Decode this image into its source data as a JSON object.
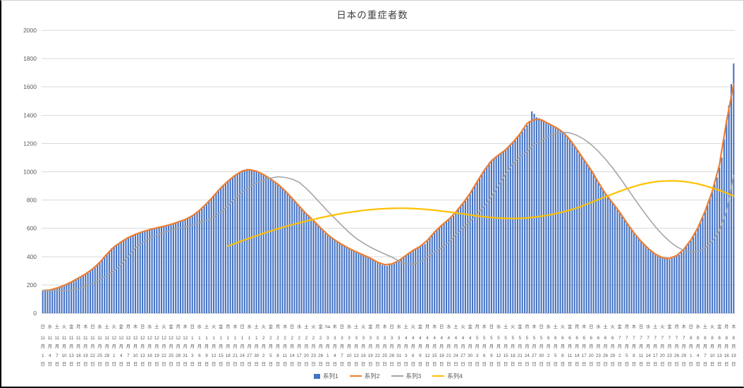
{
  "chart_data": {
    "type": "combo",
    "title": "日本の重症者数",
    "grid": true,
    "legend_position": "bottom",
    "y_axis": {
      "min": 0,
      "max": 2000,
      "step": 200,
      "tick_labels": [
        "0",
        "200",
        "400",
        "600",
        "800",
        "1000",
        "1200",
        "1400",
        "1600",
        "1800",
        "2000"
      ]
    },
    "x_axis": {
      "tick_every_days": 3,
      "month_suffix": "月",
      "day_suffix": "日",
      "tick_labels": [
        [
          "日",
          "11",
          "1"
        ],
        [
          "水",
          "11",
          "4"
        ],
        [
          "土",
          "11",
          "7"
        ],
        [
          "火",
          "11",
          "10"
        ],
        [
          "金",
          "11",
          "13"
        ],
        [
          "月",
          "11",
          "16"
        ],
        [
          "木",
          "11",
          "19"
        ],
        [
          "日",
          "11",
          "22"
        ],
        [
          "水",
          "11",
          "25"
        ],
        [
          "土",
          "11",
          "28"
        ],
        [
          "火",
          "12",
          "1"
        ],
        [
          "金",
          "12",
          "4"
        ],
        [
          "月",
          "12",
          "7"
        ],
        [
          "木",
          "12",
          "10"
        ],
        [
          "日",
          "12",
          "13"
        ],
        [
          "水",
          "12",
          "16"
        ],
        [
          "土",
          "12",
          "19"
        ],
        [
          "火",
          "12",
          "22"
        ],
        [
          "金",
          "12",
          "25"
        ],
        [
          "月",
          "12",
          "28"
        ],
        [
          "木",
          "12",
          "31"
        ],
        [
          "日",
          "1",
          "3"
        ],
        [
          "水",
          "1",
          "6"
        ],
        [
          "土",
          "1",
          "9"
        ],
        [
          "火",
          "1",
          "12"
        ],
        [
          "金",
          "1",
          "15"
        ],
        [
          "月",
          "1",
          "18"
        ],
        [
          "木",
          "1",
          "21"
        ],
        [
          "日",
          "1",
          "24"
        ],
        [
          "水",
          "1",
          "27"
        ],
        [
          "土",
          "1",
          "30"
        ],
        [
          "火",
          "2",
          "2"
        ],
        [
          "金",
          "2",
          "5"
        ],
        [
          "月",
          "2",
          "8"
        ],
        [
          "木",
          "2",
          "11"
        ],
        [
          "日",
          "2",
          "14"
        ],
        [
          "水",
          "2",
          "17"
        ],
        [
          "土",
          "2",
          "20"
        ],
        [
          "火",
          "2",
          "23"
        ],
        [
          "金",
          "2",
          "26"
        ],
        [
          "ha",
          "3",
          "1"
        ],
        [
          "木",
          "3",
          "4"
        ],
        [
          "日",
          "3",
          "7"
        ],
        [
          "水",
          "3",
          "10"
        ],
        [
          "土",
          "3",
          "13"
        ],
        [
          "火",
          "3",
          "16"
        ],
        [
          "金",
          "3",
          "19"
        ],
        [
          "月",
          "3",
          "22"
        ],
        [
          "木",
          "3",
          "25"
        ],
        [
          "日",
          "3",
          "28"
        ],
        [
          "水",
          "3",
          "31"
        ],
        [
          "土",
          "4",
          "3"
        ],
        [
          "火",
          "4",
          "6"
        ],
        [
          "金",
          "4",
          "9"
        ],
        [
          "月",
          "4",
          "12"
        ],
        [
          "木",
          "4",
          "15"
        ],
        [
          "日",
          "4",
          "18"
        ],
        [
          "水",
          "4",
          "21"
        ],
        [
          "土",
          "4",
          "24"
        ],
        [
          "火",
          "4",
          "27"
        ],
        [
          "金",
          "4",
          "30"
        ],
        [
          "月",
          "5",
          "3"
        ],
        [
          "木",
          "5",
          "6"
        ],
        [
          "日",
          "5",
          "9"
        ],
        [
          "水",
          "5",
          "12"
        ],
        [
          "土",
          "5",
          "15"
        ],
        [
          "火",
          "5",
          "18"
        ],
        [
          "金",
          "5",
          "21"
        ],
        [
          "月",
          "5",
          "24"
        ],
        [
          "木",
          "5",
          "27"
        ],
        [
          "日",
          "5",
          "30"
        ],
        [
          "水",
          "6",
          "2"
        ],
        [
          "土",
          "6",
          "5"
        ],
        [
          "火",
          "6",
          "8"
        ],
        [
          "金",
          "6",
          "11"
        ],
        [
          "月",
          "6",
          "14"
        ],
        [
          "木",
          "6",
          "17"
        ],
        [
          "日",
          "6",
          "20"
        ],
        [
          "水",
          "6",
          "23"
        ],
        [
          "土",
          "6",
          "26"
        ],
        [
          "火",
          "6",
          "29"
        ],
        [
          "金",
          "7",
          "2"
        ],
        [
          "月",
          "7",
          "5"
        ],
        [
          "木",
          "7",
          "8"
        ],
        [
          "日",
          "7",
          "11"
        ],
        [
          "水",
          "7",
          "14"
        ],
        [
          "土",
          "7",
          "17"
        ],
        [
          "火",
          "7",
          "20"
        ],
        [
          "金",
          "7",
          "23"
        ],
        [
          "月",
          "7",
          "26"
        ],
        [
          "木",
          "7",
          "29"
        ],
        [
          "日",
          "8",
          "1"
        ],
        [
          "水",
          "8",
          "4"
        ],
        [
          "土",
          "8",
          "7"
        ],
        [
          "火",
          "8",
          "10"
        ],
        [
          "金",
          "8",
          "13"
        ],
        [
          "月",
          "8",
          "16"
        ],
        [
          "木",
          "8",
          "19"
        ]
      ]
    },
    "series": [
      {
        "name": "系列1",
        "type": "bar",
        "color": "#4472C4",
        "values": [
          160,
          158,
          161,
          163,
          169,
          171,
          179,
          183,
          190,
          197,
          203,
          210,
          223,
          229,
          240,
          251,
          257,
          270,
          278,
          287,
          300,
          310,
          324,
          345,
          356,
          375,
          398,
          415,
          441,
          460,
          469,
          485,
          492,
          505,
          517,
          523,
          537,
          545,
          553,
          556,
          566,
          570,
          577,
          579,
          588,
          592,
          594,
          602,
          603,
          608,
          613,
          613,
          620,
          622,
          626,
          636,
          638,
          645,
          653,
          655,
          662,
          668,
          679,
          685,
          701,
          710,
          728,
          740,
          756,
          778,
          790,
          810,
          832,
          848,
          872,
          890,
          903,
          922,
          933,
          950,
          964,
          973,
          990,
          1000,
          1005,
          1015,
          1020,
          1017,
          1013,
          1011,
          1002,
          1000,
          992,
          978,
          972,
          960,
          951,
          936,
          928,
          915,
          901,
          881,
          868,
          850,
          833,
          811,
          796,
          775,
          758,
          736,
          721,
          700,
          687,
          668,
          657,
          640,
          623,
          601,
          586,
          565,
          555,
          538,
          530,
          515,
          507,
          493,
          487,
          475,
          468,
          456,
          451,
          440,
          435,
          424,
          421,
          412,
          407,
          395,
          392,
          382,
          371,
          355,
          351,
          341,
          338,
          336,
          347,
          345,
          351,
          360,
          370,
          385,
          395,
          406,
          424,
          435,
          447,
          453,
          465,
          471,
          484,
          490,
          510,
          535,
          555,
          575,
          590,
          610,
          621,
          639,
          650,
          665,
          675,
          690,
          711,
          739,
          760,
          780,
          795,
          815,
          843,
          877,
          905,
          934,
          956,
          985,
          1010,
          1040,
          1065,
          1082,
          1093,
          1110,
          1122,
          1128,
          1140,
          1153,
          1172,
          1185,
          1209,
          1226,
          1250,
          1270,
          1285,
          1306,
          1330,
          1360,
          1427,
          1410,
          1385,
          1379,
          1366,
          1360,
          1352,
          1338,
          1330,
          1325,
          1313,
          1308,
          1297,
          1281,
          1270,
          1252,
          1228,
          1210,
          1185,
          1155,
          1130,
          1109,
          1081,
          1060,
          1039,
          1011,
          990,
          959,
          921,
          890,
          869,
          841,
          820,
          803,
          780,
          763,
          741,
          712,
          690,
          666,
          636,
          613,
          592,
          566,
          545,
          528,
          506,
          489,
          475,
          454,
          440,
          430,
          414,
          404,
          400,
          389,
          385,
          384,
          380,
          388,
          400,
          405,
          414,
          431,
          453,
          470,
          494,
          514,
          540,
          570,
          606,
          638,
          678,
          723,
          763,
          815,
          861,
          913,
          960,
          1030,
          1100,
          1230,
          1360,
          1470,
          1620,
          1766
        ]
      },
      {
        "name": "系列2",
        "type": "line",
        "color": "#ED7D31",
        "sample_every_days": 3,
        "start_day": 0,
        "values": [
          160,
          164,
          178,
          197,
          221,
          249,
          278,
          313,
          360,
          418,
          469,
          504,
          535,
          558,
          576,
          591,
          604,
          615,
          628,
          645,
          663,
          689,
          727,
          775,
          830,
          887,
          934,
          975,
          1006,
          1015,
          1004,
          980,
          949,
          912,
          867,
          813,
          757,
          702,
          655,
          603,
          555,
          517,
          486,
          458,
          434,
          412,
          389,
          360,
          343,
          348,
          372,
          409,
          445,
          473,
          515,
          573,
          622,
          664,
          715,
          778,
          847,
          931,
          1011,
          1078,
          1119,
          1156,
          1208,
          1267,
          1342,
          1370,
          1368,
          1341,
          1315,
          1282,
          1229,
          1158,
          1084,
          1012,
          926,
          845,
          781,
          714,
          639,
          569,
          509,
          458,
          418,
          392,
          387,
          408,
          452,
          518,
          606,
          723,
          862,
          1047,
          1356,
          1619
        ]
      },
      {
        "name": "系列3",
        "type": "line",
        "color": "#A5A5A5",
        "sample_every_days": 3,
        "start_day": 0,
        "values": [
          160,
          160,
          160,
          160,
          162,
          172,
          190,
          213,
          240,
          268,
          300,
          345,
          404,
          462,
          500,
          529,
          552,
          570,
          586,
          600,
          611,
          624,
          639,
          657,
          680,
          714,
          759,
          812,
          855,
          890,
          920,
          940,
          955,
          965,
          960,
          948,
          925,
          882,
          831,
          776,
          721,
          671,
          620,
          571,
          529,
          496,
          467,
          442,
          419,
          397,
          370,
          349,
          346,
          364,
          397,
          433,
          463,
          501,
          554,
          606,
          650,
          702,
          757,
          824,
          903,
          984,
          1056,
          1105,
          1143,
          1191,
          1220,
          1250,
          1272,
          1280,
          1275,
          1258,
          1230,
          1192,
          1145,
          1090,
          1028,
          960,
          888,
          815,
          744,
          676,
          612,
          556,
          508,
          470,
          445,
          432,
          438,
          462,
          508,
          585,
          720,
          975
        ]
      },
      {
        "name": "系列4",
        "type": "line",
        "color": "#FFC000",
        "sample_every_days": 3,
        "start_day": 78,
        "values": [
          475,
          494,
          512,
          530,
          548,
          565,
          581,
          597,
          612,
          626,
          639,
          652,
          664,
          675,
          686,
          696,
          705,
          713,
          720,
          727,
          732,
          736,
          739,
          741,
          742,
          742,
          740,
          737,
          733,
          728,
          722,
          716,
          709,
          702,
          695,
          688,
          682,
          677,
          673,
          671,
          670,
          671,
          674,
          679,
          686,
          694,
          704,
          716,
          729,
          744,
          763,
          783,
          803,
          823,
          843,
          862,
          880,
          896,
          910,
          921,
          929,
          934,
          936,
          935,
          931,
          924,
          914,
          901,
          886,
          869,
          850,
          830
        ]
      }
    ]
  }
}
